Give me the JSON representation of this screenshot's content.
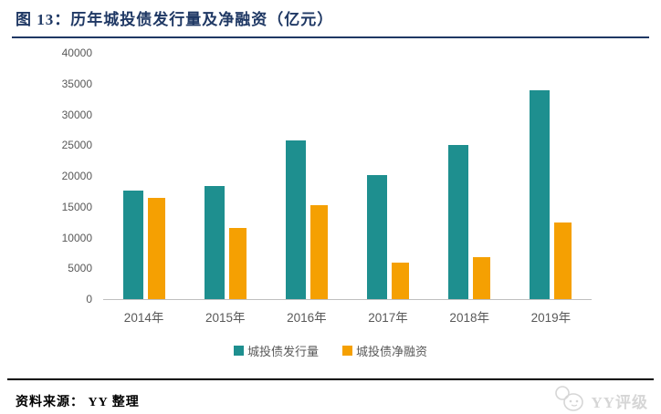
{
  "title": "图 13：历年城投债发行量及净融资（亿元）",
  "footer": {
    "source": "资料来源： YY 整理",
    "watermark": "YY评级"
  },
  "colors": {
    "title_accent": "#1F3864",
    "issuance_teal": "#1E8F8F",
    "net_orange": "#F5A002",
    "axis_text": "#595959",
    "baseline_gray": "#BFBFBF",
    "footer_rule": "#000000",
    "watermark_gray": "#D6D6D6"
  },
  "chart_data": {
    "type": "bar",
    "title": "历年城投债发行量及净融资（亿元）",
    "categories": [
      "2014年",
      "2015年",
      "2016年",
      "2017年",
      "2018年",
      "2019年"
    ],
    "series": [
      {
        "name": "城投债发行量",
        "color": "#1E8F8F",
        "values": [
          17700,
          18400,
          25800,
          20100,
          25000,
          34000
        ]
      },
      {
        "name": "城投债净融资",
        "color": "#F5A002",
        "values": [
          16400,
          11500,
          15200,
          6000,
          6800,
          12400
        ]
      }
    ],
    "xlabel": "",
    "ylabel": "",
    "ylim": [
      0,
      40000
    ],
    "yticks": [
      0,
      5000,
      10000,
      15000,
      20000,
      25000,
      30000,
      35000,
      40000
    ],
    "grid": false,
    "legend_position": "bottom"
  }
}
